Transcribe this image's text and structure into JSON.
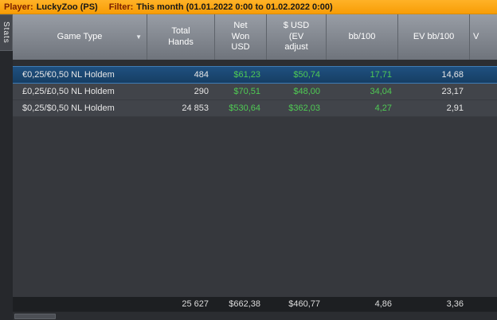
{
  "colors": {
    "topbar_orange": "#f89d05",
    "value_green": "#4fca54",
    "selected_row_blue": "#1c4a77",
    "header_gray": "#81868e"
  },
  "top_bar": {
    "player_label": "Player:",
    "player_value": "LuckyZoo (PS)",
    "filter_label": "Filter:",
    "filter_value": "This month (01.01.2022 0:00 to 01.02.2022 0:00)"
  },
  "side_tab": {
    "label": "Stats"
  },
  "table": {
    "columns": [
      {
        "id": "game_type",
        "label": "Game Type"
      },
      {
        "id": "total_hands",
        "label": "Total\nHands"
      },
      {
        "id": "net_won_usd",
        "label": "Net\nWon\nUSD"
      },
      {
        "id": "usd_ev_adjust",
        "label": "$ USD\n(EV\nadjust"
      },
      {
        "id": "bb_100",
        "label": "bb/100"
      },
      {
        "id": "ev_bb_100",
        "label": "EV bb/100"
      },
      {
        "id": "v_clipped",
        "label": "V"
      }
    ],
    "rows": [
      {
        "game_type": "€0,25/€0,50 NL Holdem",
        "total_hands": "484",
        "net_won": "$61,23",
        "usd_ev": "$50,74",
        "bb100": "17,71",
        "ev_bb100": "14,68",
        "selected": true
      },
      {
        "game_type": "£0,25/£0,50 NL Holdem",
        "total_hands": "290",
        "net_won": "$70,51",
        "usd_ev": "$48,00",
        "bb100": "34,04",
        "ev_bb100": "23,17",
        "selected": false
      },
      {
        "game_type": "$0,25/$0,50 NL Holdem",
        "total_hands": "24 853",
        "net_won": "$530,64",
        "usd_ev": "$362,03",
        "bb100": "4,27",
        "ev_bb100": "2,91",
        "selected": false
      }
    ],
    "summary": {
      "total_hands": "25 627",
      "net_won": "$662,38",
      "usd_ev": "$460,77",
      "bb100": "4,86",
      "ev_bb100": "3,36"
    }
  }
}
